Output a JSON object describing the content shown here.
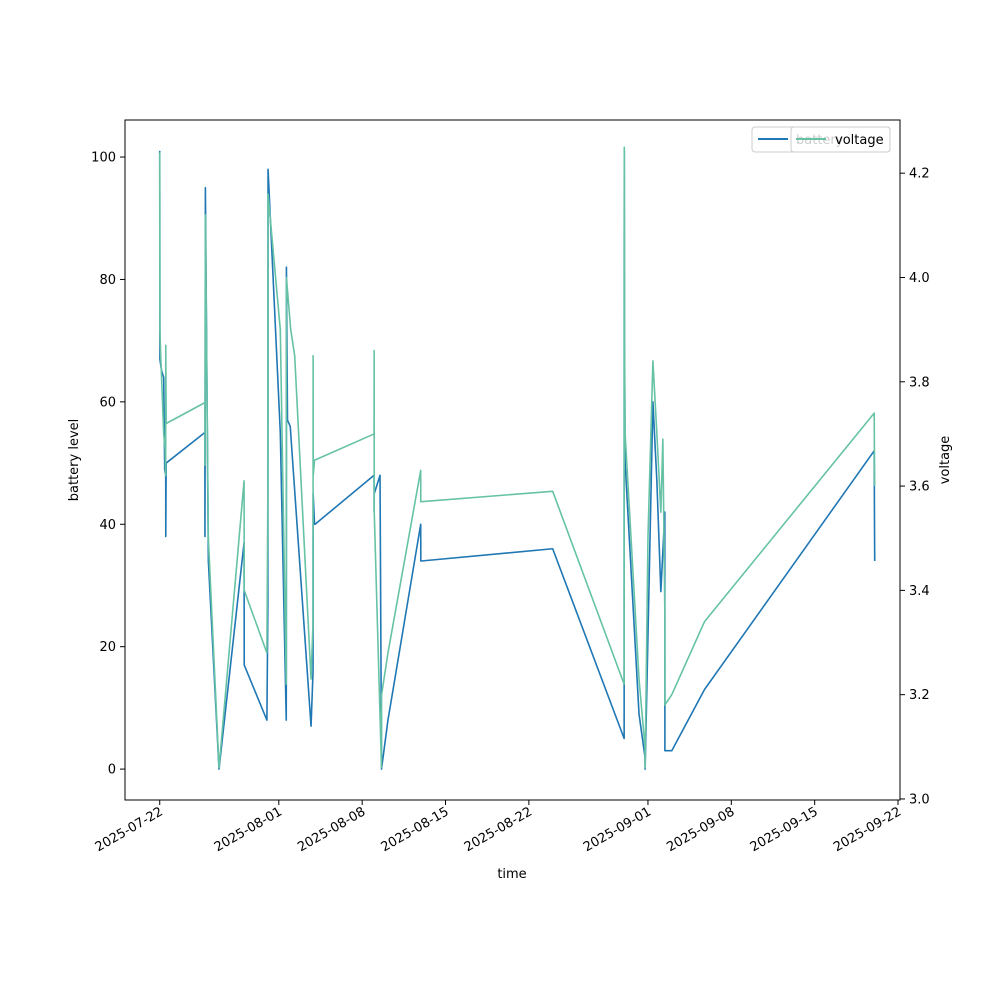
{
  "chart_data": {
    "type": "line",
    "title": "",
    "xlabel": "time",
    "ylabel_left": "battery level",
    "ylabel_right": "voltage",
    "x_tick_labels": [
      "2025-07-22",
      "2025-08-01",
      "2025-08-08",
      "2025-08-15",
      "2025-08-22",
      "2025-09-01",
      "2025-09-08",
      "2025-09-15",
      "2025-09-22"
    ],
    "x_tick_dates": [
      "2025-07-22",
      "2025-08-01",
      "2025-08-08",
      "2025-08-15",
      "2025-08-22",
      "2025-09-01",
      "2025-09-08",
      "2025-09-15",
      "2025-09-22"
    ],
    "xlim": [
      "2025-07-19 02:00",
      "2025-09-22 04:00"
    ],
    "y_left_ticks": [
      0,
      20,
      40,
      60,
      80,
      100
    ],
    "y_left_tick_labels": [
      "0",
      "20",
      "40",
      "60",
      "80",
      "100"
    ],
    "ylim_left": [
      -5.05,
      106.05
    ],
    "y_right_ticks": [
      3.0,
      3.2,
      3.4,
      3.6,
      3.8,
      4.0,
      4.2
    ],
    "y_right_tick_labels": [
      "3.0",
      "3.2",
      "3.4",
      "3.6",
      "3.8",
      "4.0",
      "4.2"
    ],
    "ylim_right": [
      2.998,
      4.302
    ],
    "grid": false,
    "legend_placement": "top-right",
    "series": [
      {
        "name": "battery",
        "axis": "left",
        "color": "#1f77b4",
        "x": [
          "2025-07-22 00:00",
          "2025-07-22 00:01",
          "2025-07-22 00:05",
          "2025-07-22 00:20",
          "2025-07-22 02:00",
          "2025-07-22 04:00",
          "2025-07-22 08:00",
          "2025-07-22 10:00",
          "2025-07-22 12:00",
          "2025-07-22 12:05",
          "2025-07-22 12:10",
          "2025-07-22 12:20",
          "2025-07-22 13:00",
          "2025-07-25 19:00",
          "2025-07-25 19:10",
          "2025-07-25 19:20",
          "2025-07-25 20:00",
          "2025-07-26 02:00",
          "2025-07-26 23:30",
          "2025-07-29 02:00",
          "2025-07-29 02:20",
          "2025-07-31 00:00",
          "2025-07-31 02:00",
          "2025-07-31 02:20",
          "2025-08-01 03:00",
          "2025-08-01 15:00",
          "2025-08-01 15:10",
          "2025-08-01 15:20",
          "2025-08-01 17:30",
          "2025-08-01 23:00",
          "2025-08-03 17:00",
          "2025-08-03 21:00",
          "2025-08-03 21:15",
          "2025-08-04 00:00",
          "2025-08-04 01:00",
          "2025-08-09 00:00",
          "2025-08-09 00:10",
          "2025-08-09 00:20",
          "2025-08-09 12:00",
          "2025-08-09 15:00",
          "2025-08-10 04:00",
          "2025-08-12 22:00",
          "2025-08-12 22:10",
          "2025-08-12 23:00",
          "2025-08-24 00:00",
          "2025-08-30 00:00",
          "2025-08-30 00:10",
          "2025-08-30 00:20",
          "2025-08-30 00:40",
          "2025-08-30 02:00",
          "2025-08-31 06:00",
          "2025-08-31 18:00",
          "2025-08-31 18:20",
          "2025-09-01 10:00",
          "2025-09-01 18:00",
          "2025-09-02 02:00",
          "2025-09-02 10:00",
          "2025-09-02 10:10",
          "2025-09-03 00:00",
          "2025-09-05 18:00",
          "2025-09-20 00:00",
          "2025-09-20 00:10",
          "2025-09-20 00:20",
          "2025-09-20 00:40",
          "2025-09-20 01:00"
        ],
        "values": [
          101,
          99,
          95,
          67,
          66,
          65,
          64,
          49,
          48,
          47,
          38,
          41,
          50,
          55,
          38,
          48,
          95,
          34,
          0,
          37,
          17,
          8,
          27,
          98,
          55,
          8,
          17,
          82,
          57,
          56,
          7,
          16,
          45,
          40,
          40,
          48,
          42,
          45,
          48,
          0,
          8,
          40,
          34,
          34,
          36,
          5,
          85,
          101,
          70,
          50,
          9,
          2,
          0,
          60,
          47,
          29,
          42,
          3,
          3,
          13,
          52,
          49,
          45,
          39,
          34
        ]
      },
      {
        "name": "voltage",
        "axis": "right",
        "color": "#66c2a5",
        "x": [
          "2025-07-22 00:00",
          "2025-07-22 00:01",
          "2025-07-22 00:05",
          "2025-07-22 00:20",
          "2025-07-22 02:00",
          "2025-07-22 04:00",
          "2025-07-22 06:00",
          "2025-07-22 08:00",
          "2025-07-22 10:00",
          "2025-07-22 11:00",
          "2025-07-22 12:00",
          "2025-07-22 12:10",
          "2025-07-22 13:00",
          "2025-07-25 19:00",
          "2025-07-25 19:10",
          "2025-07-25 19:20",
          "2025-07-25 20:00",
          "2025-07-26 02:00",
          "2025-07-26 23:30",
          "2025-07-29 02:00",
          "2025-07-29 02:20",
          "2025-07-31 00:00",
          "2025-07-31 02:00",
          "2025-07-31 02:20",
          "2025-08-01 03:00",
          "2025-08-01 15:00",
          "2025-08-01 15:10",
          "2025-08-01 15:20",
          "2025-08-02 00:00",
          "2025-08-02 08:00",
          "2025-08-03 17:00",
          "2025-08-03 21:00",
          "2025-08-03 21:10",
          "2025-08-03 21:20",
          "2025-08-04 00:00",
          "2025-08-04 01:00",
          "2025-08-09 00:00",
          "2025-08-09 00:10",
          "2025-08-09 00:20",
          "2025-08-09 15:00",
          "2025-08-09 15:10",
          "2025-08-10 04:00",
          "2025-08-12 22:00",
          "2025-08-12 22:10",
          "2025-08-12 23:00",
          "2025-08-24 00:00",
          "2025-08-30 00:00",
          "2025-08-30 00:10",
          "2025-08-30 00:20",
          "2025-08-30 00:40",
          "2025-08-30 02:00",
          "2025-08-31 06:00",
          "2025-08-31 18:00",
          "2025-08-31 18:20",
          "2025-09-01 00:00",
          "2025-09-01 10:00",
          "2025-09-01 18:00",
          "2025-09-02 02:00",
          "2025-09-02 06:00",
          "2025-09-02 10:00",
          "2025-09-02 10:10",
          "2025-09-03 00:00",
          "2025-09-05 18:00",
          "2025-09-20 00:00",
          "2025-09-20 00:10",
          "2025-09-20 00:20",
          "2025-09-20 00:40",
          "2025-09-20 01:00"
        ],
        "values": [
          4.24,
          4.2,
          4.1,
          3.9,
          3.85,
          3.8,
          3.75,
          3.7,
          3.68,
          3.67,
          3.62,
          3.87,
          3.72,
          3.76,
          3.64,
          3.7,
          4.12,
          3.5,
          3.06,
          3.61,
          3.4,
          3.28,
          3.6,
          4.16,
          3.9,
          3.22,
          3.55,
          4.0,
          3.9,
          3.85,
          3.23,
          3.34,
          3.85,
          3.62,
          3.65,
          3.65,
          3.7,
          3.86,
          3.55,
          3.06,
          3.2,
          3.28,
          3.63,
          3.57,
          3.57,
          3.59,
          3.22,
          3.95,
          4.25,
          3.9,
          3.7,
          3.23,
          3.1,
          3.06,
          3.5,
          3.84,
          3.7,
          3.55,
          3.69,
          3.36,
          3.18,
          3.2,
          3.34,
          3.74,
          3.72,
          3.68,
          3.63,
          3.6
        ]
      }
    ]
  }
}
